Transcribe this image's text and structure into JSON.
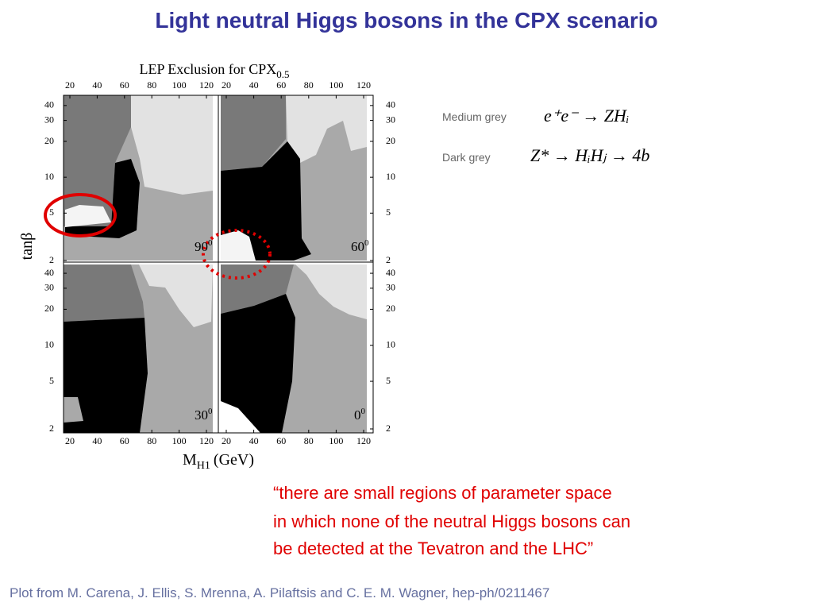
{
  "title": "Light neutral Higgs bosons in the CPX scenario",
  "plot": {
    "title": "LEP Exclusion for CPX",
    "title_subscript": "0.5",
    "x_ticks": [
      20,
      40,
      60,
      80,
      100,
      120
    ],
    "y_ticks": [
      2,
      5,
      10,
      20,
      30,
      40
    ],
    "y_label": "tanβ",
    "x_label": "M",
    "x_label_subscript": "H1",
    "x_label_unit": "(GeV)",
    "panels": [
      {
        "label": "90",
        "sup": "0"
      },
      {
        "label": "60",
        "sup": "0"
      },
      {
        "label": "30",
        "sup": "0"
      },
      {
        "label": "0",
        "sup": "0"
      }
    ]
  },
  "legend": [
    {
      "label": "Medium grey",
      "formula": "e⁺e⁻ → ZHᵢ"
    },
    {
      "label": "Dark grey",
      "formula": "Z* → HᵢHⱼ → 4b"
    }
  ],
  "quote": [
    "“there are small regions of parameter space",
    "in which none of the neutral Higgs bosons can",
    "be detected at the Tevatron and the LHC”"
  ],
  "footer": "Plot from M. Carena, J. Ellis, S. Mrenna, A. Pilaftsis and C. E. M. Wagner, hep-ph/0211467"
}
